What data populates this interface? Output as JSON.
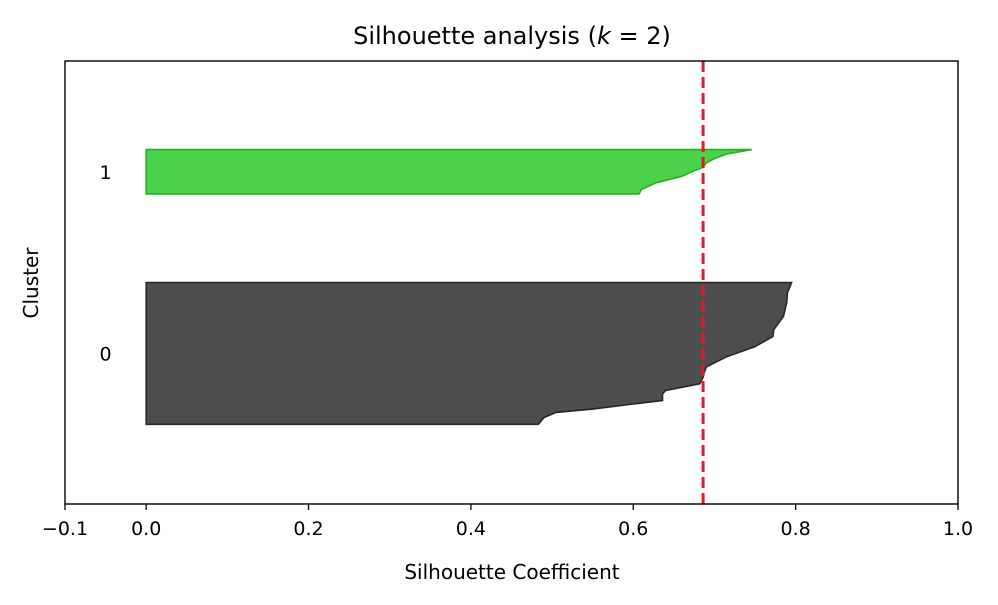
{
  "chart_data": {
    "type": "area",
    "title": "Silhouette analysis (k = 2)",
    "title_parts": {
      "prefix": "Silhouette analysis (",
      "var": "k",
      "op": " = ",
      "value": "2",
      "suffix": ")"
    },
    "xlabel": "Silhouette Coefficient",
    "ylabel": "Cluster",
    "xlim": [
      -0.1,
      1.0
    ],
    "ylim": [
      0,
      100
    ],
    "x_ticks": [
      -0.1,
      0.0,
      0.2,
      0.4,
      0.6,
      0.8,
      1.0
    ],
    "x_tick_labels": [
      "−0.1",
      "0.0",
      "0.2",
      "0.4",
      "0.6",
      "0.8",
      "1.0"
    ],
    "grid": false,
    "average_silhouette": 0.686,
    "average_line_color": "#e41a1c",
    "clusters": [
      {
        "label": "0",
        "color": "#4d4d4d",
        "edge_color": "#262626",
        "y_range": [
          18,
          50
        ],
        "profile": [
          [
            0,
            0.795
          ],
          [
            3,
            0.79
          ],
          [
            6,
            0.789
          ],
          [
            10,
            0.785
          ],
          [
            14,
            0.773
          ],
          [
            16,
            0.772
          ],
          [
            19,
            0.75
          ],
          [
            22,
            0.715
          ],
          [
            25,
            0.69
          ],
          [
            27,
            0.687
          ],
          [
            28,
            0.686
          ],
          [
            30,
            0.682
          ],
          [
            32,
            0.64
          ],
          [
            33,
            0.636
          ],
          [
            35,
            0.636
          ],
          [
            36,
            0.6
          ],
          [
            37.5,
            0.55
          ],
          [
            38.5,
            0.505
          ],
          [
            40,
            0.49
          ],
          [
            42,
            0.483
          ],
          [
            42,
            0.483
          ]
        ]
      },
      {
        "label": "1",
        "color": "#4cd14c",
        "edge_color": "#22b122",
        "y_range": [
          70,
          80
        ],
        "profile": [
          [
            0,
            0.746
          ],
          [
            1,
            0.715
          ],
          [
            2,
            0.7
          ],
          [
            3,
            0.69
          ],
          [
            4,
            0.686
          ],
          [
            5,
            0.672
          ],
          [
            6,
            0.66
          ],
          [
            7.5,
            0.628
          ],
          [
            9,
            0.61
          ],
          [
            10,
            0.607
          ]
        ]
      }
    ]
  }
}
